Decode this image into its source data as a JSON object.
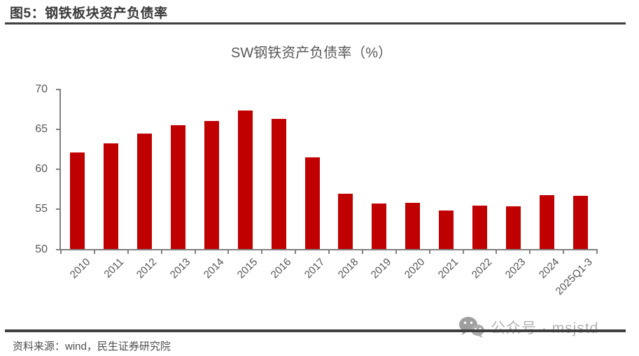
{
  "header": {
    "title": "图5：钢铁板块资产负债率"
  },
  "chart_data": {
    "type": "bar",
    "title": "SW钢铁资产负债率（%）",
    "categories": [
      "2010",
      "2011",
      "2012",
      "2013",
      "2014",
      "2015",
      "2016",
      "2017",
      "2018",
      "2019",
      "2020",
      "2021",
      "2022",
      "2023",
      "2024",
      "2025Q1-3"
    ],
    "values": [
      62.1,
      63.3,
      64.5,
      65.5,
      66.1,
      67.4,
      66.3,
      61.5,
      57.0,
      55.7,
      55.8,
      54.9,
      55.5,
      55.4,
      56.8,
      56.7
    ],
    "xlabel": "",
    "ylabel": "",
    "ylim": [
      50,
      70
    ],
    "y_ticks": [
      70,
      65,
      60,
      55,
      50
    ],
    "bar_color": "#c00000",
    "axis_color": "#808080",
    "grid": false,
    "legend_position": "none"
  },
  "footer": {
    "source": "资料来源：wind，民生证券研究院"
  },
  "watermark": {
    "icon": "wechat-icon",
    "text": "公众号 · msjstd"
  }
}
